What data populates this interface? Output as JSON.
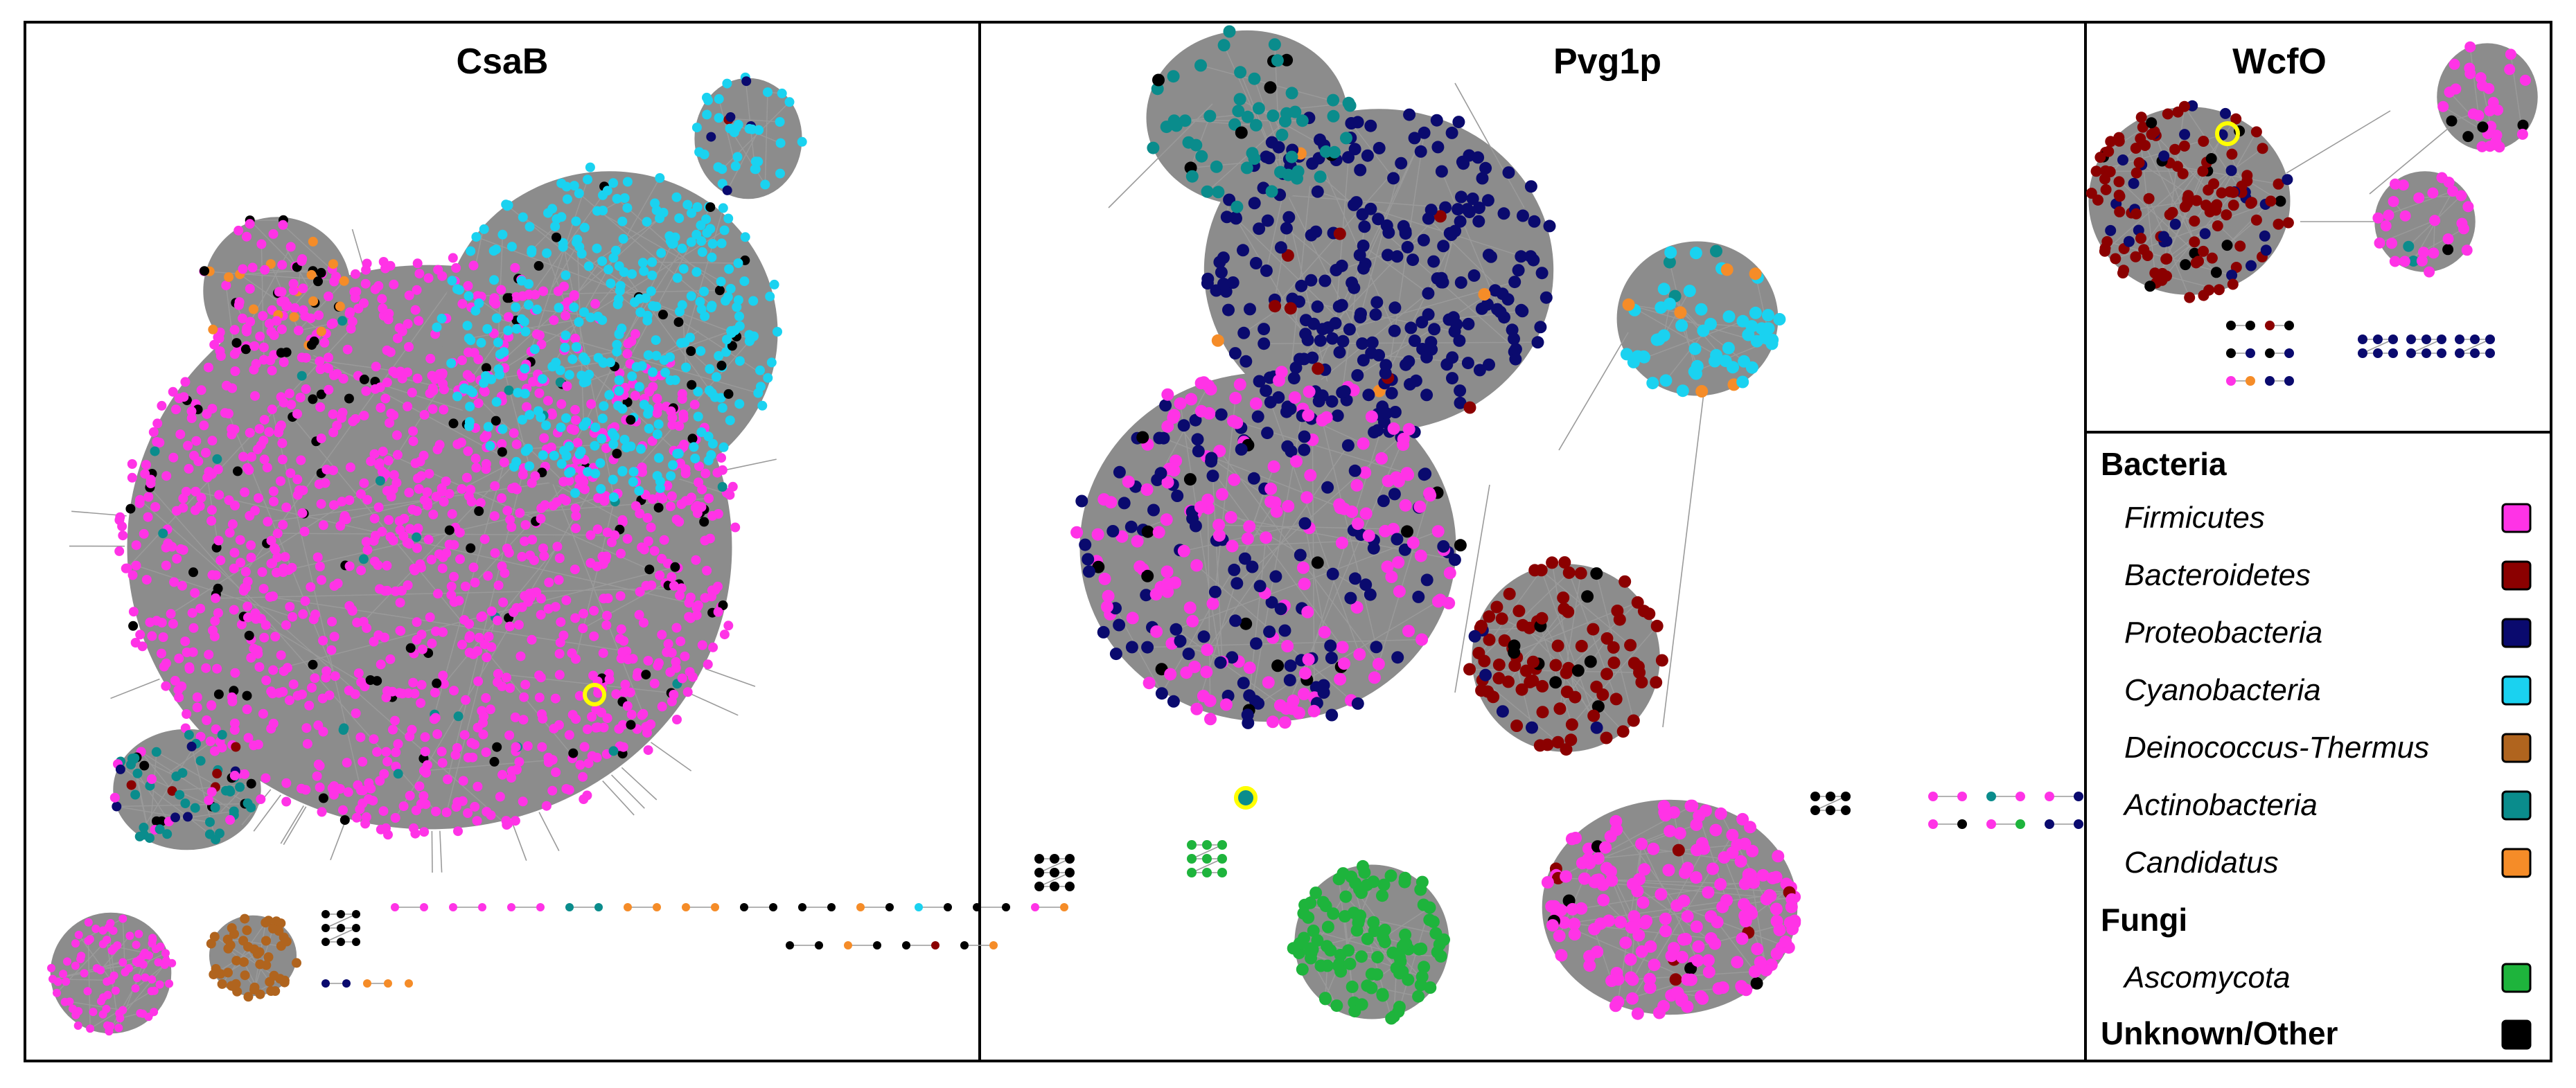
{
  "panels": [
    {
      "title": "CsaB"
    },
    {
      "title": "Pvg1p"
    },
    {
      "title": "WcfO"
    }
  ],
  "legend": {
    "groups": [
      {
        "title": "Bacteria",
        "items": [
          {
            "label": "Firmicutes",
            "color": "#ff33e6"
          },
          {
            "label": "Bacteroidetes",
            "color": "#8b0000"
          },
          {
            "label": "Proteobacteria",
            "color": "#0a0a6e"
          },
          {
            "label": "Cyanobacteria",
            "color": "#1ad2f0"
          },
          {
            "label": "Deinococcus-Thermus",
            "color": "#b0641e"
          },
          {
            "label": "Actinobacteria",
            "color": "#0a8c8c"
          },
          {
            "label": "Candidatus",
            "color": "#f58c28"
          }
        ]
      },
      {
        "title": "Fungi",
        "items": [
          {
            "label": "Ascomycota",
            "color": "#1eb43c"
          }
        ]
      },
      {
        "title": "Unknown/Other",
        "items": [],
        "color": "#000000"
      }
    ]
  },
  "colors": {
    "edge": "#9a9a9a",
    "cluster_fill": "#8c8c8c",
    "highlight": "#ffff00"
  }
}
